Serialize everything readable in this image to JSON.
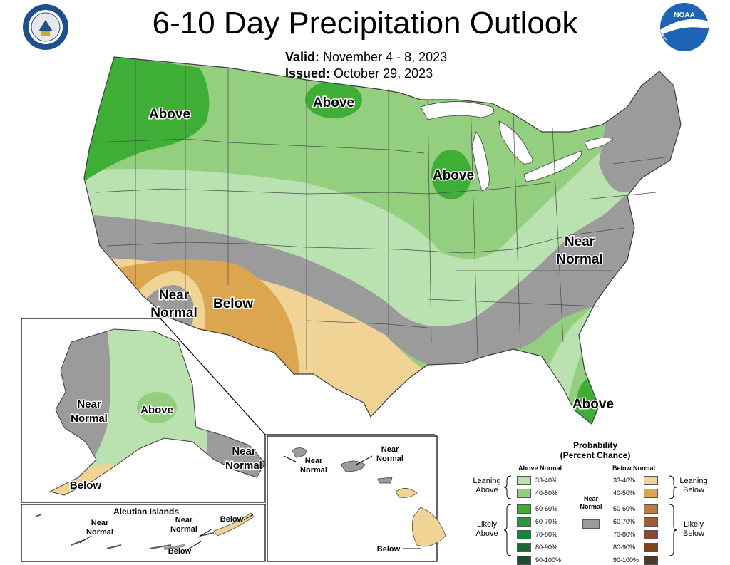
{
  "title": "6-10 Day Precipitation Outlook",
  "valid_label": "Valid:",
  "valid_value": "November 4 - 8, 2023",
  "issued_label": "Issued:",
  "issued_value": "October 29, 2023",
  "logos": {
    "left": "commerce-seal",
    "right": "noaa-logo",
    "left_text": "DEPARTMENT OF COMMERCE · UNITED STATES OF AMERICA",
    "right_text": "NOAA"
  },
  "map_labels": {
    "nw_above": "Above",
    "north_above": "Above",
    "greatlakes_above": "Above",
    "east_near": "Near",
    "east_normal": "Normal",
    "sw_near": "Near",
    "sw_normal": "Normal",
    "sw_below": "Below",
    "florida_above": "Above",
    "alaska_near": "Near",
    "alaska_normal": "Normal",
    "alaska_above": "Above",
    "alaska_se_near": "Near",
    "alaska_se_normal": "Normal",
    "alaska_below": "Below",
    "aleutian_title": "Aleutian Islands",
    "aleutian_near1": "Near",
    "aleutian_normal1": "Normal",
    "aleutian_near2": "Near",
    "aleutian_normal2": "Normal",
    "aleutian_below1": "Below",
    "aleutian_below2": "Below",
    "hawaii_near1": "Near",
    "hawaii_normal1": "Normal",
    "hawaii_near2": "Near",
    "hawaii_normal2": "Normal",
    "hawaii_below": "Below"
  },
  "colors": {
    "above_33": "#b9e2b0",
    "above_40": "#93cf7e",
    "above_50": "#3fae37",
    "above_60": "#2d9640",
    "above_70": "#15873b",
    "above_80": "#186a33",
    "above_90": "#1e4d2b",
    "near_normal": "#9b9b9b",
    "below_33": "#f0d395",
    "below_40": "#dca550",
    "below_50": "#c27c3d",
    "below_60": "#a45a38",
    "below_70": "#8f4637",
    "below_80": "#7a4418",
    "below_90": "#4d3a28",
    "water": "#ffffff",
    "border": "#3c3c3c"
  },
  "legend": {
    "title_line1": "Probability",
    "title_line2": "(Percent Chance)",
    "above_header": "Above Normal",
    "below_header": "Below Normal",
    "leaning_above_1": "Leaning",
    "leaning_above_2": "Above",
    "likely_above_1": "Likely",
    "likely_above_2": "Above",
    "leaning_below_1": "Leaning",
    "leaning_below_2": "Below",
    "likely_below_1": "Likely",
    "likely_below_2": "Below",
    "near_normal_1": "Near",
    "near_normal_2": "Normal",
    "above_items": [
      "33-40%",
      "40-50%",
      "50-60%",
      "60-70%",
      "70-80%",
      "80-90%",
      "90-100%"
    ],
    "below_items": [
      "33-40%",
      "40-50%",
      "50-60%",
      "60-70%",
      "70-80%",
      "80-90%",
      "90-100%"
    ]
  }
}
